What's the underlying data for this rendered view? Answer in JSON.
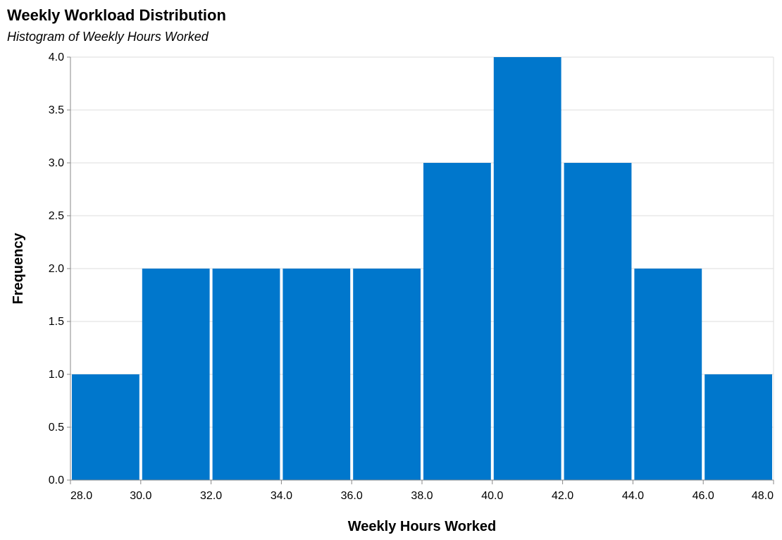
{
  "chart_data": {
    "type": "bar",
    "title": "Weekly Workload Distribution",
    "subtitle": "Histogram of Weekly Hours Worked",
    "xlabel": "Weekly Hours Worked",
    "ylabel": "Frequency",
    "bin_start": [
      28,
      30,
      32,
      34,
      36,
      38,
      40,
      42,
      44,
      46
    ],
    "bin_end": [
      30,
      32,
      34,
      36,
      38,
      40,
      42,
      44,
      46,
      48
    ],
    "values": [
      1,
      2,
      2,
      2,
      2,
      3,
      4,
      3,
      2,
      1
    ],
    "xlim": [
      28,
      48
    ],
    "ylim": [
      0,
      4
    ],
    "x_ticks": [
      "28.0",
      "30.0",
      "32.0",
      "34.0",
      "36.0",
      "38.0",
      "40.0",
      "42.0",
      "44.0",
      "46.0",
      "48.0"
    ],
    "y_ticks": [
      "0.0",
      "0.5",
      "1.0",
      "1.5",
      "2.0",
      "2.5",
      "3.0",
      "3.5",
      "4.0"
    ],
    "bar_color": "#0077cc",
    "grid": true,
    "legend": "none"
  }
}
